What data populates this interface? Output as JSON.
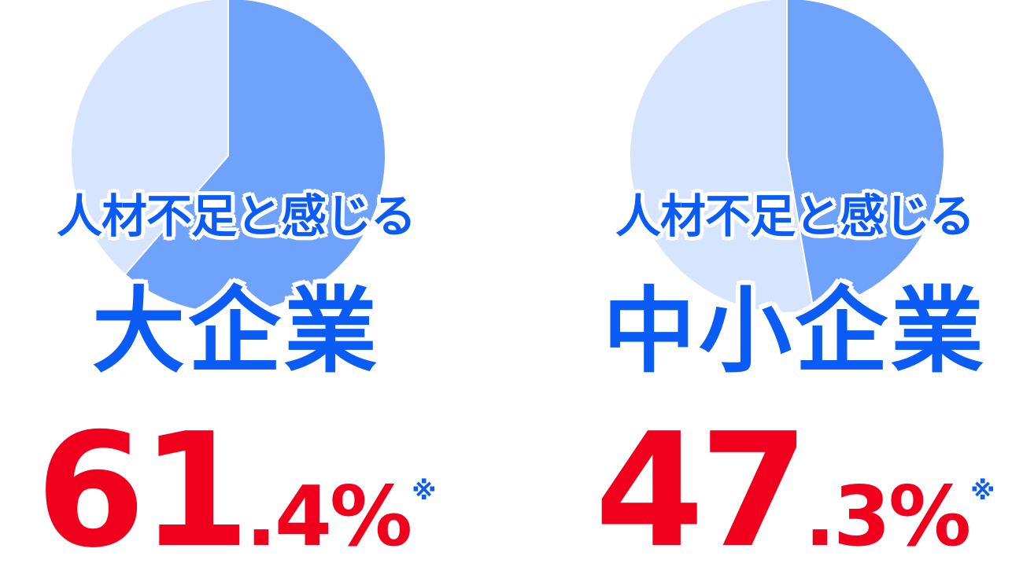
{
  "chart_data": [
    {
      "type": "pie",
      "subtitle": "人材不足と感じる",
      "category": "大企業",
      "value_int": "61",
      "value_dec": ".4%",
      "note": "※",
      "slices": [
        {
          "label": "人材不足と感じる",
          "value": 61.4,
          "color": "#6ea2fb"
        },
        {
          "label": "",
          "value": 38.6,
          "color": "#d6e5fd"
        }
      ]
    },
    {
      "type": "pie",
      "subtitle": "人材不足と感じる",
      "category": "中小企業",
      "value_int": "47",
      "value_dec": ".3%",
      "note": "※",
      "slices": [
        {
          "label": "人材不足と感じる",
          "value": 47.3,
          "color": "#6ea2fb"
        },
        {
          "label": "",
          "value": 52.7,
          "color": "#d6e5fd"
        }
      ]
    }
  ]
}
